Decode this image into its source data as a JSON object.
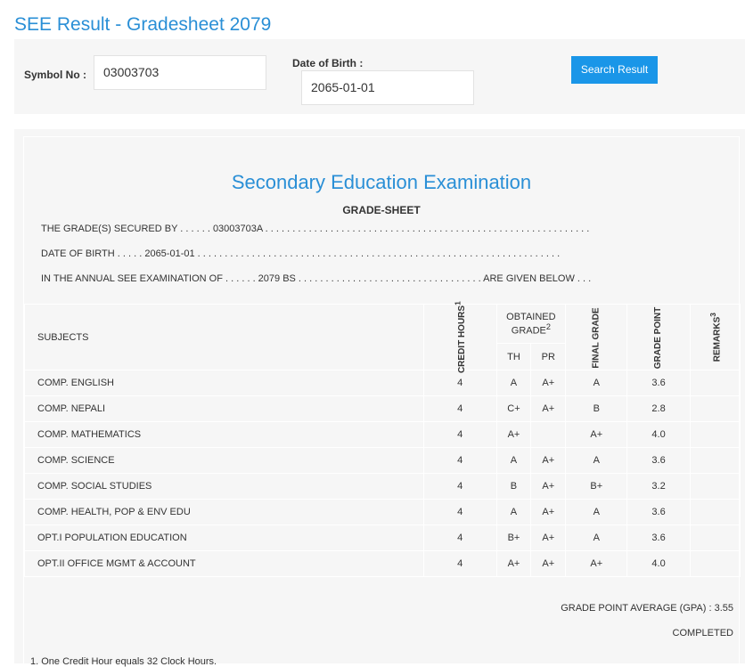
{
  "page_title": "SEE Result - Gradesheet 2079",
  "search": {
    "symbol_label": "Symbol No :",
    "symbol_value": "03003703",
    "dob_label": "Date of Birth :",
    "dob_value": "2065-01-01",
    "button": "Search Result"
  },
  "sheet": {
    "heading": "Secondary Education Examination",
    "subheading": "GRADE-SHEET",
    "line1": "THE GRADE(S) SECURED BY . . . . . . 03003703A . . . . . . . . . . . . . . . . . . . . . . . . . . . . . . . . . . . . . . . . . . . . . . . . . . . . . . . . . . . .",
    "line2": "DATE OF BIRTH . . . . . 2065-01-01 . . . . . . . . . . . . . . . . . . . . . . . . . . . . . . . . . . . . . . . . . . . . . . . . . . . . . . . . . . . . . . . . . . .",
    "line3": "IN THE ANNUAL SEE EXAMINATION OF . . . . . . 2079 BS . . . . . . . . . . . . . . . . . . . . . . . . . . . . . . . . . . ARE GIVEN BELOW . . .",
    "headers": {
      "subjects": "SUBJECTS",
      "credit": "CREDIT HOURS",
      "credit_sup": "1",
      "obtained": "OBTAINED GRADE",
      "obtained_sup": "2",
      "th": "TH",
      "pr": "PR",
      "final": "FINAL GRADE",
      "gp": "GRADE POINT",
      "remarks": "REMARKS",
      "remarks_sup": "3"
    },
    "rows": [
      {
        "subject": "COMP. ENGLISH",
        "credit": "4",
        "th": "A",
        "pr": "A+",
        "final": "A",
        "gp": "3.6",
        "remarks": ""
      },
      {
        "subject": "COMP. NEPALI",
        "credit": "4",
        "th": "C+",
        "pr": "A+",
        "final": "B",
        "gp": "2.8",
        "remarks": ""
      },
      {
        "subject": "COMP. MATHEMATICS",
        "credit": "4",
        "th": "A+",
        "pr": "",
        "final": "A+",
        "gp": "4.0",
        "remarks": ""
      },
      {
        "subject": "COMP. SCIENCE",
        "credit": "4",
        "th": "A",
        "pr": "A+",
        "final": "A",
        "gp": "3.6",
        "remarks": ""
      },
      {
        "subject": "COMP. SOCIAL STUDIES",
        "credit": "4",
        "th": "B",
        "pr": "A+",
        "final": "B+",
        "gp": "3.2",
        "remarks": ""
      },
      {
        "subject": "COMP. HEALTH, POP & ENV EDU",
        "credit": "4",
        "th": "A",
        "pr": "A+",
        "final": "A",
        "gp": "3.6",
        "remarks": ""
      },
      {
        "subject": "OPT.I POPULATION EDUCATION",
        "credit": "4",
        "th": "B+",
        "pr": "A+",
        "final": "A",
        "gp": "3.6",
        "remarks": ""
      },
      {
        "subject": "OPT.II OFFICE MGMT & ACCOUNT",
        "credit": "4",
        "th": "A+",
        "pr": "A+",
        "final": "A+",
        "gp": "4.0",
        "remarks": ""
      }
    ],
    "gpa": "GRADE POINT AVERAGE (GPA) : 3.55",
    "status": "COMPLETED",
    "footnote": "1. One Credit Hour equals 32 Clock Hours."
  }
}
